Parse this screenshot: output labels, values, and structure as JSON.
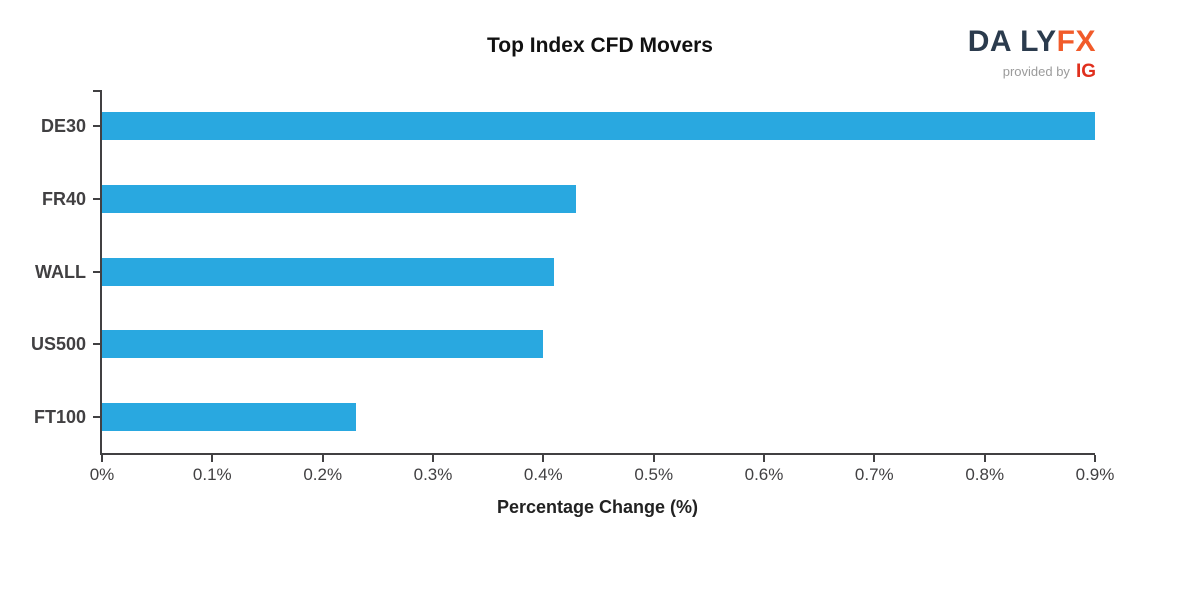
{
  "header": {
    "title": "Top Index CFD Movers",
    "logo": {
      "da": "DA",
      "ly": "LY",
      "fx": "FX",
      "provided_by": "provided by",
      "ig": "IG"
    }
  },
  "chart_data": {
    "type": "bar",
    "orientation": "horizontal",
    "title": "Top Index CFD Movers",
    "categories": [
      "DE30",
      "FR40",
      "WALL",
      "US500",
      "FT100"
    ],
    "values": [
      0.9,
      0.43,
      0.41,
      0.4,
      0.23
    ],
    "xlabel": "Percentage Change (%)",
    "ylabel": "",
    "xlim": [
      0,
      0.9
    ],
    "x_ticks": [
      0,
      0.1,
      0.2,
      0.3,
      0.4,
      0.5,
      0.6,
      0.7,
      0.8,
      0.9
    ],
    "x_tick_labels": [
      "0%",
      "0.1%",
      "0.2%",
      "0.3%",
      "0.4%",
      "0.5%",
      "0.6%",
      "0.7%",
      "0.8%",
      "0.9%"
    ],
    "bar_color": "#29A8E0",
    "axis_color": "#414042",
    "grid": false,
    "legend": null
  }
}
